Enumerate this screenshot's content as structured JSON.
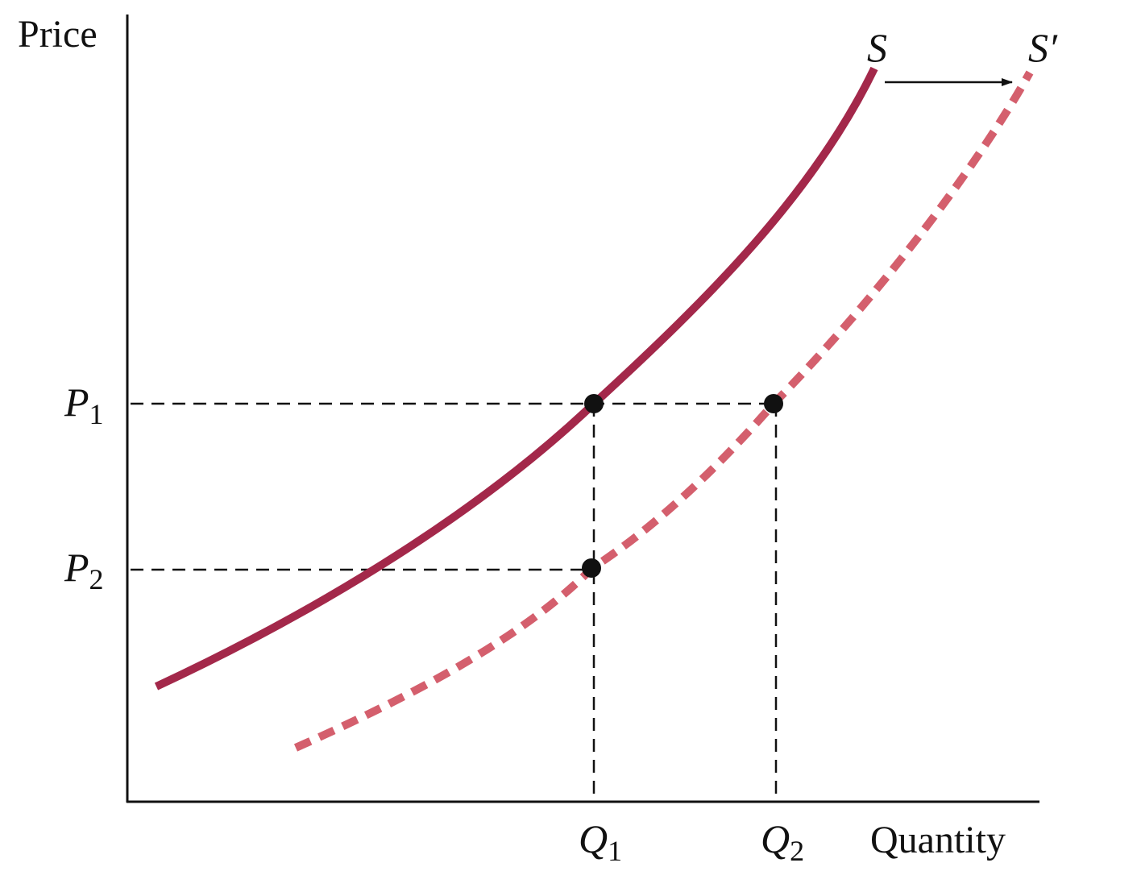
{
  "diagram": {
    "axis_labels": {
      "y": "Price",
      "x": "Quantity"
    },
    "curves": [
      {
        "name": "S",
        "style": "solid",
        "color": "#a3284a"
      },
      {
        "name": "S′",
        "style": "dashed",
        "color": "#d45f6d"
      }
    ],
    "price_levels": [
      {
        "letter": "P",
        "sub": "1"
      },
      {
        "letter": "P",
        "sub": "2"
      }
    ],
    "quantity_levels": [
      {
        "letter": "Q",
        "sub": "1"
      },
      {
        "letter": "Q",
        "sub": "2"
      }
    ],
    "shift_arrow": {
      "from": "S",
      "to": "S′",
      "direction": "right"
    }
  }
}
